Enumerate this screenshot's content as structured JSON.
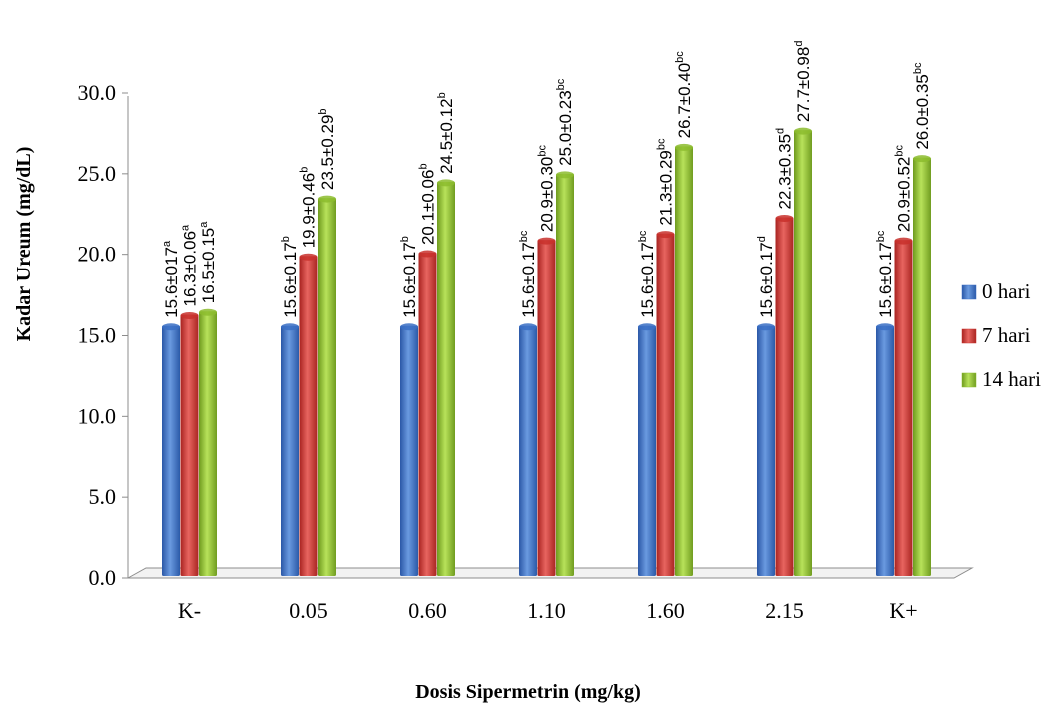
{
  "chart_data": {
    "type": "bar",
    "title": "",
    "xlabel": "Dosis Sipermetrin (mg/kg)",
    "ylabel": "Kadar Ureum (mg/dL)",
    "ylim": [
      0,
      30
    ],
    "yticks": [
      "0.0",
      "5.0",
      "10.0",
      "15.0",
      "20.0",
      "25.0",
      "30.0"
    ],
    "categories": [
      "K-",
      "0.05",
      "0.60",
      "1.10",
      "1.60",
      "2.15",
      "K+"
    ],
    "legend_position": "right",
    "grid": false,
    "series": [
      {
        "name": "0 hari",
        "color": "#3a6fc4",
        "values": [
          15.6,
          15.6,
          15.6,
          15.6,
          15.6,
          15.6,
          15.6
        ],
        "labels": [
          "15.6±017",
          "15.6±0.17",
          "15.6±0.17",
          "15.6±0.17",
          "15.6±0.17",
          "15.6±0.17",
          "15.6±0.17"
        ],
        "sups": [
          "a",
          "b",
          "b",
          "bc",
          "bc",
          "d",
          "bc"
        ]
      },
      {
        "name": "7 hari",
        "color": "#c8302c",
        "values": [
          16.3,
          19.9,
          20.1,
          20.9,
          21.3,
          22.3,
          20.9
        ],
        "labels": [
          "16.3±0.06",
          "19.9±0.46",
          "20.1±0.06",
          "20.9±0.30",
          "21.3±0.29",
          "22.3±0.35",
          "20.9±0.52"
        ],
        "sups": [
          "a",
          "b",
          "b",
          "bc",
          "bc",
          "d",
          "bc"
        ]
      },
      {
        "name": "14 hari",
        "color": "#8cbc2e",
        "values": [
          16.5,
          23.5,
          24.5,
          25.0,
          26.7,
          27.7,
          26.0
        ],
        "labels": [
          "16.5±0.15",
          "23.5±0.29",
          "24.5±0.12",
          "25.0±0.23",
          "26.7±0.40",
          "27.7±0.98",
          "26.0±0.35"
        ],
        "sups": [
          "a",
          "b",
          "b",
          "bc",
          "bc",
          "d",
          "bc"
        ]
      }
    ]
  }
}
